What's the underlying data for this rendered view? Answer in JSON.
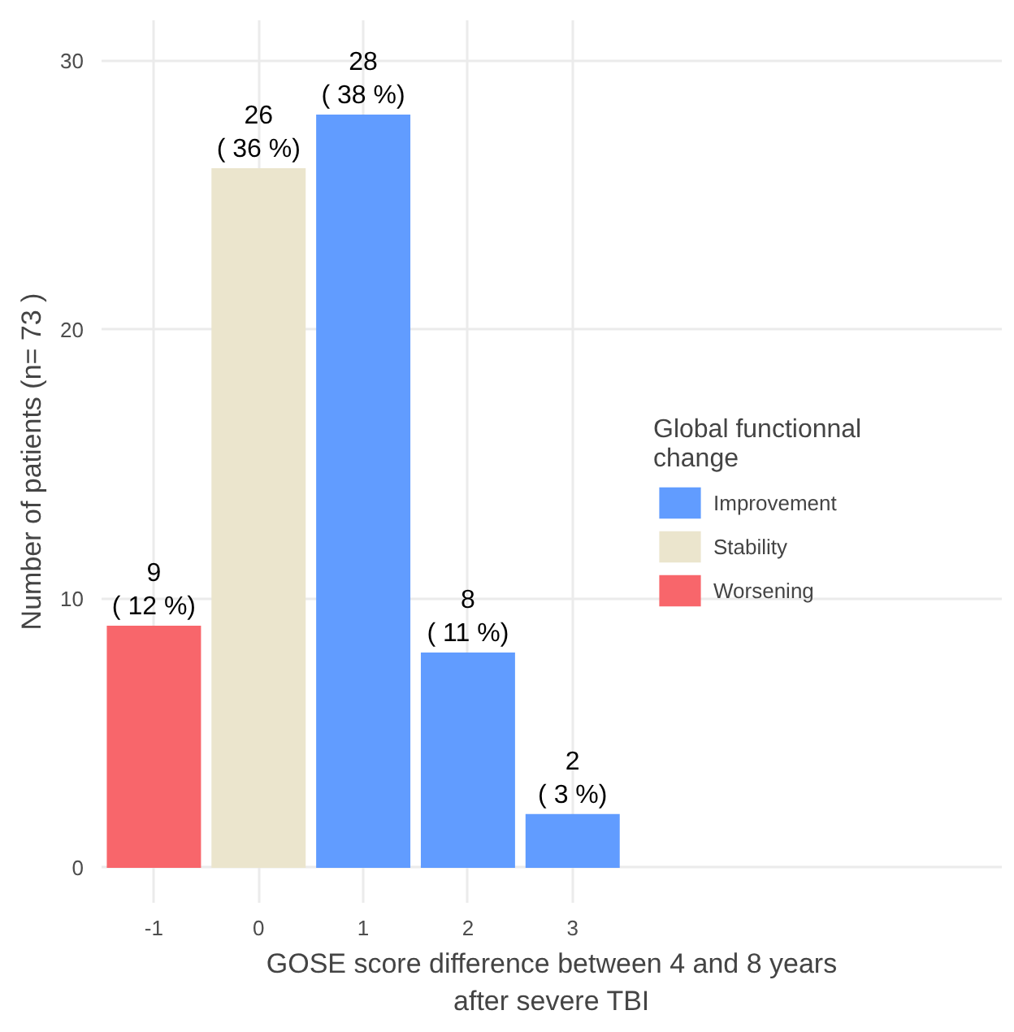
{
  "chart_data": {
    "type": "bar",
    "xlabel": "GOSE score difference between 4 and 8 years\nafter severe TBI",
    "ylabel": "Number of patients (n= 73 )",
    "legend_title": "Global functionnal\nchange",
    "categories": [
      "-1",
      "0",
      "1",
      "2",
      "3"
    ],
    "series": [
      {
        "name": "Improvement",
        "color": "#619cff",
        "values": [
          null,
          null,
          28,
          8,
          2
        ],
        "value_labels": [
          null,
          null,
          "28\n( 38 %)",
          "8\n( 11 %)",
          "2\n( 3 %)"
        ]
      },
      {
        "name": "Stability",
        "color": "#ebe5cd",
        "values": [
          null,
          26,
          null,
          null,
          null
        ],
        "value_labels": [
          null,
          "26\n( 36 %)",
          null,
          null,
          null
        ]
      },
      {
        "name": "Worsening",
        "color": "#f8666b",
        "values": [
          9,
          null,
          null,
          null,
          null
        ],
        "value_labels": [
          "9\n( 12 %)",
          null,
          null,
          null,
          null
        ]
      }
    ],
    "ylim": [
      -1.3,
      31.5
    ],
    "yticks": [
      0,
      10,
      20,
      30
    ],
    "grid": true,
    "legend": "right"
  }
}
